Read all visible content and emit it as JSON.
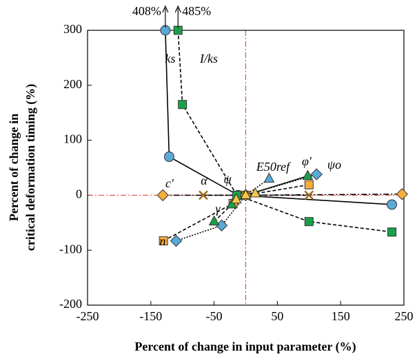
{
  "chart_data": {
    "type": "line",
    "xlabel": "Percent of change in input parameter (%)",
    "ylabel": [
      "Percent of change in",
      "critical deformation timing (%)"
    ],
    "xlim": [
      -250,
      250
    ],
    "xticks": [
      -250,
      -150,
      -50,
      50,
      150,
      250
    ],
    "ylim": [
      -200,
      300
    ],
    "yticks": [
      -200,
      -100,
      0,
      100,
      200,
      300
    ],
    "reference_lines": true,
    "annotations": [
      "408%",
      "485%"
    ],
    "series": [
      {
        "name": "ks",
        "color": "#5aa9d6",
        "marker": "circle",
        "dash": "solid",
        "x": [
          -127,
          -121,
          -12,
          231
        ],
        "values": [
          300,
          70,
          0,
          -17
        ]
      },
      {
        "name": "I/ks",
        "color": "#1aa04a",
        "marker": "square",
        "dash": "dashed",
        "x": [
          -107,
          -100,
          -14,
          100,
          231
        ],
        "values": [
          300,
          165,
          0,
          -48,
          -67
        ]
      },
      {
        "name": "c′",
        "color": "#f5ad3c",
        "marker": "square",
        "dash": "dashed",
        "x": [
          -130,
          -20,
          0,
          100
        ],
        "values": [
          -83,
          -15,
          0,
          19
        ]
      },
      {
        "name": "α",
        "color": "#5aa9d6",
        "marker": "diamond",
        "dash": "dotted",
        "x": [
          -110,
          -38,
          0,
          112
        ],
        "values": [
          -83,
          -55,
          0,
          38
        ]
      },
      {
        "name": "ψ",
        "color": "#f5ad3c",
        "marker": "diamond",
        "dash": "dashdot",
        "x": [
          -131,
          0,
          247
        ],
        "values": [
          0,
          0,
          2
        ]
      },
      {
        "name": "E50ref",
        "color": "#9c6b1f",
        "marker": "x",
        "dash": "dashed",
        "x": [
          -67,
          0,
          100
        ],
        "values": [
          0,
          0,
          0
        ]
      },
      {
        "name": "φ′",
        "color": "#1aa04a",
        "marker": "triangle",
        "dash": "dashed",
        "x": [
          -50,
          -22,
          0
        ],
        "values": [
          -48,
          -17,
          0
        ]
      },
      {
        "name": "ψo",
        "color": "#1aa04a",
        "marker": "triangle",
        "dash": "solid",
        "x": [
          0,
          98
        ],
        "values": [
          0,
          35
        ]
      },
      {
        "name": "n",
        "color": "#5aa9d6",
        "marker": "triangle",
        "dash": "dotted",
        "x": [
          0,
          37
        ],
        "values": [
          0,
          30
        ]
      },
      {
        "name": "γ",
        "color": "#f7c844",
        "marker": "triangle",
        "dash": "dashed",
        "x": [
          -15,
          0,
          15
        ],
        "values": [
          -8,
          0,
          3
        ]
      }
    ]
  }
}
